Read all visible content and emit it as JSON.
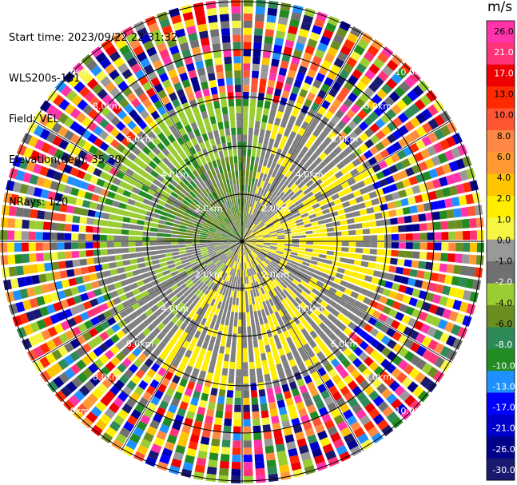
{
  "info": {
    "start_time": "Start time: 2023/09/22 22:31:32",
    "instrument": "WLS200s-181",
    "field": "Field: VEL",
    "elevation": "Elevation(deg): 35.30",
    "nrays": "NRays: 120"
  },
  "colorbar": {
    "unit": "m/s",
    "labels": [
      "26.0",
      "21.0",
      "17.0",
      "13.0",
      "10.0",
      "8.0",
      "6.0",
      "4.0",
      "2.0",
      "1.0",
      "0.0",
      "-1.0",
      "-2.0",
      "-4.0",
      "-6.0",
      "-8.0",
      "-10.0",
      "-13.0",
      "-17.0",
      "-21.0",
      "-26.0",
      "-30.0"
    ],
    "colors": [
      "#ff33aa",
      "#ff3377",
      "#ee0000",
      "#ff2a00",
      "#ff5533",
      "#ff8844",
      "#ff9a33",
      "#ffc400",
      "#ffee00",
      "#f5f542",
      "#999999",
      "#707070",
      "#9acd32",
      "#6b8e23",
      "#2e8b57",
      "#228b22",
      "#1e90ff",
      "#0000ff",
      "#0000cd",
      "#00008b",
      "#191970"
    ]
  },
  "chart_data": {
    "type": "heatmap",
    "title": "",
    "projection": "polar (PPI)",
    "nrays": 120,
    "range_ring_labels": [
      "2.0km",
      "4.0km",
      "6.0km",
      "8.0km"
    ],
    "ring_label_texts": [
      "2.0km",
      "2.0km",
      "2.0km",
      "2.0km",
      "4.0km",
      "4.0km",
      "4.0km",
      "4.0km",
      "6.0km",
      "6.0km",
      "6.0km",
      "6.0km",
      "8.0km",
      "8.0km",
      "8.0km",
      "8.0km",
      "10.0km",
      "10.0km",
      "10.0km",
      "10.0km"
    ],
    "value_range": [
      -30.0,
      26.0
    ],
    "regions": [
      {
        "area": "north-west inner",
        "dominant_value": -2.0
      },
      {
        "area": "east inner",
        "dominant_value": 2.0
      },
      {
        "area": "south inner",
        "dominant_value": 2.0
      },
      {
        "area": "outer rings",
        "dominant_value": "noise (all colors)"
      }
    ]
  }
}
